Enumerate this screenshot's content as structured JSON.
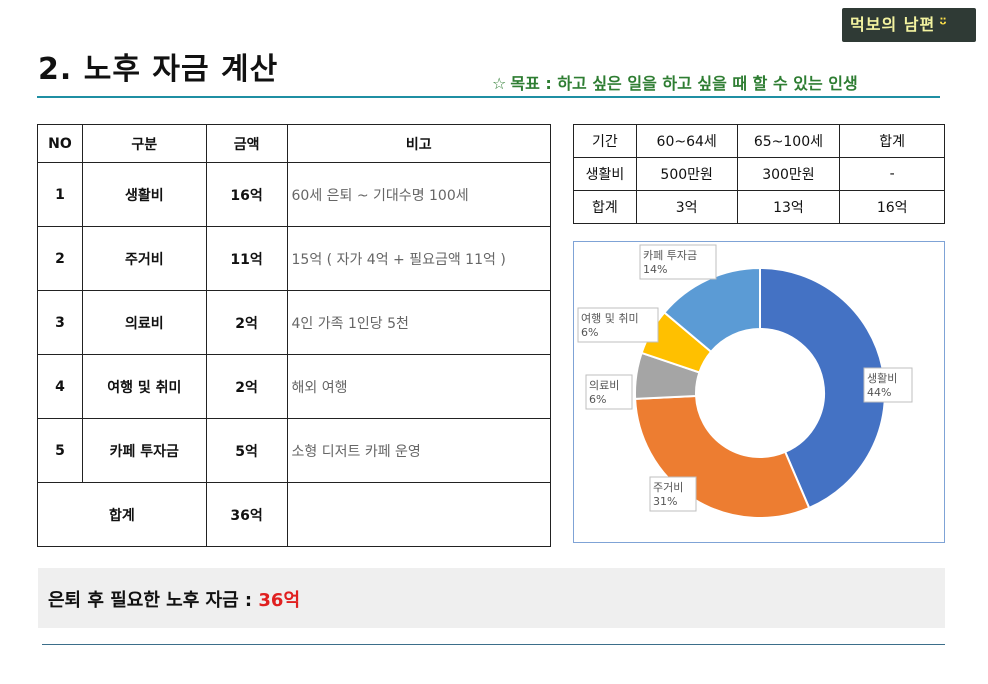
{
  "logo": {
    "text": "먹보의 남편",
    "smile": "ᵕ̈"
  },
  "title": "2. 노후 자금 계산",
  "goal": {
    "star": "☆",
    "text": "목표 : 하고 싶은 일을 하고 싶을 때 할 수 있는 인생"
  },
  "main_table": {
    "headers": [
      "NO",
      "구분",
      "금액",
      "비고"
    ],
    "rows": [
      {
        "no": "1",
        "category": "생활비",
        "amount": "16억",
        "note": "60세 은퇴 ~ 기대수명 100세"
      },
      {
        "no": "2",
        "category": "주거비",
        "amount": "11억",
        "note": "15억 ( 자가 4억 + 필요금액 11억 )"
      },
      {
        "no": "3",
        "category": "의료비",
        "amount": "2억",
        "note": "4인 가족 1인당 5천"
      },
      {
        "no": "4",
        "category": "여행 및 취미",
        "amount": "2억",
        "note": "해외 여행"
      },
      {
        "no": "5",
        "category": "카페 투자금",
        "amount": "5억",
        "note": "소형 디저트 카페 운영"
      }
    ],
    "total": {
      "label": "합계",
      "amount": "36억",
      "note": ""
    }
  },
  "summary_table": {
    "headers": [
      "기간",
      "60~64세",
      "65~100세",
      "합계"
    ],
    "rows": [
      [
        "생활비",
        "500만원",
        "300만원",
        "-"
      ],
      [
        "합계",
        "3억",
        "13억",
        "16억"
      ]
    ]
  },
  "chart_data": {
    "type": "pie",
    "donut": true,
    "title": "",
    "slices": [
      {
        "label": "생활비",
        "value": 44,
        "display": "44%",
        "color": "#4472c4"
      },
      {
        "label": "주거비",
        "value": 31,
        "display": "31%",
        "color": "#ed7d31"
      },
      {
        "label": "의료비",
        "value": 6,
        "display": "6%",
        "color": "#a5a5a5"
      },
      {
        "label": "여행 및 취미",
        "value": 6,
        "display": "6%",
        "color": "#ffc000"
      },
      {
        "label": "카페 투자금",
        "value": 14,
        "display": "14%",
        "color": "#5b9bd5"
      }
    ]
  },
  "footer": {
    "text": "은퇴 후 필요한 노후 자금 : ",
    "value": "36억"
  }
}
